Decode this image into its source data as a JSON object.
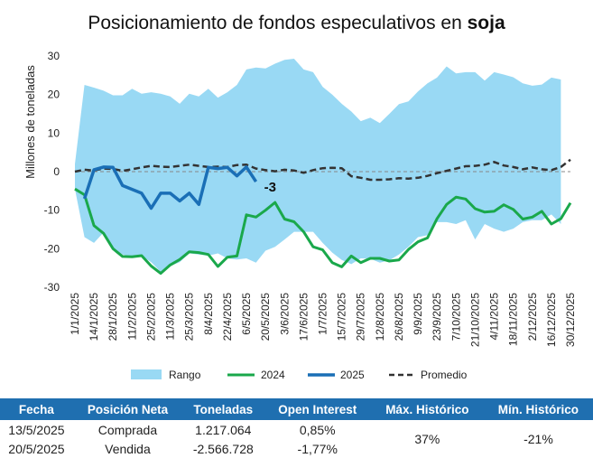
{
  "title": {
    "main": "Posicionamiento de fondos especulativos en ",
    "bold": "soja"
  },
  "chart_data": {
    "type": "area",
    "ylabel": "Millones de toneladas",
    "ylim": [
      -30,
      30
    ],
    "yticks": [
      -30,
      -20,
      -10,
      0,
      10,
      20,
      30
    ],
    "xlim": [
      0,
      52
    ],
    "x_tick_labels": [
      "1/1/2025",
      "14/1/2025",
      "28/1/2025",
      "11/2/2025",
      "25/2/2025",
      "11/3/2025",
      "25/3/2025",
      "8/4/2025",
      "22/4/2025",
      "6/5/2025",
      "20/5/2025",
      "3/6/2025",
      "17/6/2025",
      "1/7/2025",
      "15/7/2025",
      "29/7/2025",
      "12/8/2025",
      "26/8/2025",
      "9/9/2025",
      "23/9/2025",
      "7/10/2025",
      "21/10/2025",
      "4/11/2025",
      "18/11/2025",
      "2/12/2025",
      "16/12/2025",
      "30/12/2025"
    ],
    "x_tick_step_weeks": 2,
    "annotation": {
      "text": "-3",
      "x": 19,
      "y": -2.6
    },
    "series": [
      {
        "name": "Rango",
        "color": "#99d9f4",
        "upper": [
          2,
          22.5,
          21.8,
          21,
          19.8,
          19.8,
          21.5,
          20.2,
          20.6,
          20.2,
          19.5,
          17.6,
          20.2,
          19.5,
          21.5,
          19.2,
          20.6,
          22.5,
          26.5,
          27,
          26.8,
          28,
          29,
          29.3,
          26.5,
          25.8,
          22,
          20,
          17.6,
          15.6,
          13.1,
          14,
          12.6,
          15,
          17.5,
          18.2,
          20.8,
          22.9,
          24.4,
          27.3,
          25.5,
          25.8,
          25.8,
          23.6,
          25.8,
          25.2,
          24.5,
          22.9,
          22.3,
          22.6,
          24.4,
          23.9
        ],
        "lower": [
          -4.5,
          -17,
          -18.5,
          -15.8,
          -19.8,
          -21.5,
          -22,
          -21.8,
          -23.5,
          -26,
          -24.5,
          -23.5,
          -21.2,
          -21.5,
          -21.8,
          -21.2,
          -22.5,
          -22.8,
          -22.5,
          -23.6,
          -20.5,
          -19.5,
          -17.6,
          -15.6,
          -15.6,
          -15.6,
          -18.5,
          -21,
          -22.9,
          -24,
          -22.5,
          -22.6,
          -23.6,
          -23,
          -21.5,
          -19.5,
          -17,
          -16.5,
          -13.1,
          -13.1,
          -13.6,
          -12.6,
          -17.6,
          -13.6,
          -14.8,
          -15.6,
          -14.8,
          -13.1,
          -12.6,
          -12.6,
          -11.1,
          -13.6
        ]
      },
      {
        "name": "2024",
        "color": "#1aa84b",
        "values": [
          -4.5,
          -6,
          -14,
          -16,
          -20,
          -22,
          -22.1,
          -21.8,
          -24.5,
          -26.4,
          -24.2,
          -22.8,
          -20.8,
          -21,
          -21.5,
          -24.6,
          -22.2,
          -21.9,
          -11.2,
          -11.8,
          -10,
          -8,
          -12.3,
          -13,
          -15.6,
          -19.5,
          -20.3,
          -23.6,
          -24.7,
          -21.9,
          -23.6,
          -22.5,
          -22.5,
          -23.2,
          -22.9,
          -20.2,
          -18.2,
          -17.2,
          -12.2,
          -8.5,
          -6.6,
          -7.1,
          -9.6,
          -10.5,
          -10.3,
          -8.6,
          -9.8,
          -12.3,
          -11.8,
          -10.3,
          -13.6,
          -12.2,
          -8.1
        ]
      },
      {
        "name": "2025",
        "color": "#1a6fb6",
        "values": [
          null,
          -7,
          0.5,
          1.2,
          1.1,
          -3.6,
          -4.6,
          -5.6,
          -9.5,
          -5.6,
          -5.6,
          -7.6,
          -5.6,
          -8.5,
          1.1,
          0.8,
          1.1,
          -1.1,
          1.2,
          -2.6
        ]
      },
      {
        "name": "Promedio",
        "color": "#333333",
        "values": [
          0,
          0.5,
          0.3,
          0.8,
          0.7,
          0.2,
          0.6,
          1.1,
          1.5,
          1.3,
          1.2,
          1.5,
          1.8,
          1.5,
          1.2,
          1.3,
          1.2,
          1.7,
          1.8,
          0.8,
          0.4,
          0.1,
          0.5,
          0.3,
          -0.3,
          0.4,
          0.9,
          1,
          0.9,
          -1.2,
          -1.6,
          -2.1,
          -2.1,
          -2,
          -1.7,
          -1.8,
          -1.6,
          -1.1,
          -0.4,
          0.2,
          0.8,
          1.4,
          1.5,
          1.8,
          2.5,
          1.6,
          1.2,
          0.6,
          1.1,
          0.6,
          0.4,
          1.2,
          3.1
        ]
      }
    ],
    "legend_placement": "bottom"
  },
  "summary": {
    "headers": [
      "Fecha",
      "Posición Neta",
      "Toneladas",
      "Open Interest",
      "Máx. Histórico",
      "Mín. Histórico"
    ],
    "rows": [
      {
        "fecha": "13/5/2025",
        "posicion": "Comprada",
        "toneladas": "1.217.064",
        "open_interest": "0,85%"
      },
      {
        "fecha": "20/5/2025",
        "posicion": "Vendida",
        "toneladas": "-2.566.728",
        "open_interest": "-1,77%"
      }
    ],
    "max_historico": "37%",
    "min_historico": "-21%"
  }
}
